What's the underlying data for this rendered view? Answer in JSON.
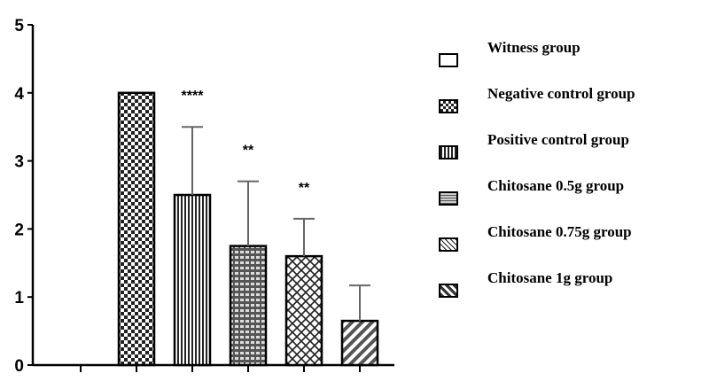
{
  "chart_data": {
    "type": "bar",
    "title": "",
    "xlabel": "",
    "ylabel": "",
    "ylim": [
      0,
      5
    ],
    "yticks": [
      "0",
      "1",
      "2",
      "3",
      "4",
      "5"
    ],
    "grid": false,
    "legend_position": "right",
    "categories": [
      "Witness group",
      "Negative control group",
      "Positive control group",
      "Chitosane 0.5g group",
      "Chitosane 0.75g group",
      "Chitosane 1g group"
    ],
    "values": [
      0,
      4.0,
      2.5,
      1.75,
      1.6,
      0.65
    ],
    "error_bars": [
      0,
      0,
      1.0,
      0.95,
      0.55,
      0.52
    ],
    "significance": [
      "",
      "",
      "****",
      "**",
      "**",
      ""
    ],
    "patterns": [
      "plain",
      "checker",
      "vertical-stripes",
      "brick",
      "diamond",
      "diagonal-stripes"
    ]
  },
  "legend": {
    "items": [
      {
        "label": "Witness group",
        "pattern": "plain"
      },
      {
        "label": "Negative control group",
        "pattern": "checker"
      },
      {
        "label": "Positive control group",
        "pattern": "vertical-stripes"
      },
      {
        "label": "Chitosane 0.5g group",
        "pattern": "brick"
      },
      {
        "label": "Chitosane 0.75g group",
        "pattern": "diamond"
      },
      {
        "label": "Chitosane 1g group",
        "pattern": "diagonal-stripes"
      }
    ]
  }
}
